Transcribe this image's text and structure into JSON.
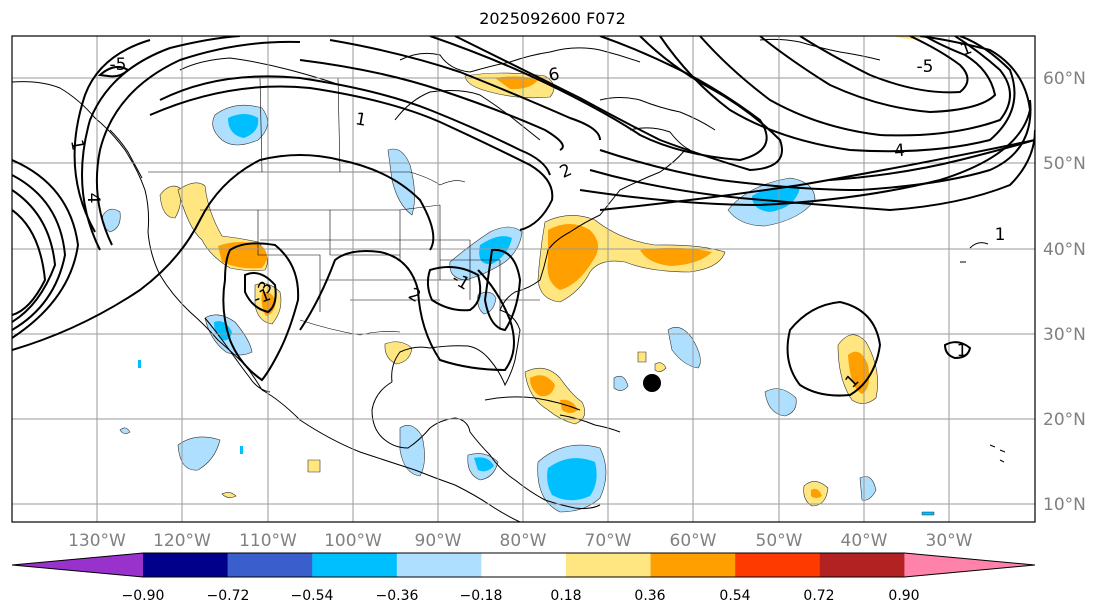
{
  "title": "2025092600 F072",
  "lon_labels": [
    "130°W",
    "120°W",
    "110°W",
    "100°W",
    "90°W",
    "80°W",
    "70°W",
    "60°W",
    "50°W",
    "40°W",
    "30°W"
  ],
  "lat_labels": [
    "60°N",
    "50°N",
    "40°N",
    "30°N",
    "20°N",
    "10°N"
  ],
  "colorbar": {
    "colors": [
      "#9932cc",
      "#00008b",
      "#3a5fcd",
      "#00bfff",
      "#afdfff",
      "#ffffff",
      "#ffe680",
      "#ff9f00",
      "#ff3a00",
      "#b22222",
      "#ff82aa"
    ],
    "tick_labels": [
      "−0.90",
      "−0.72",
      "−0.54",
      "−0.36",
      "−0.18",
      "0.18",
      "0.36",
      "0.54",
      "0.72",
      "0.90"
    ]
  },
  "contour_labels": [
    "1",
    "1",
    "2",
    "4",
    "6",
    "-5",
    "1",
    "4",
    "2",
    "-1",
    "-1",
    "3",
    "-5",
    "1",
    "1",
    "1"
  ],
  "marker": {
    "label": "storm-center",
    "lon": -65.5,
    "lat": 24.5
  }
}
